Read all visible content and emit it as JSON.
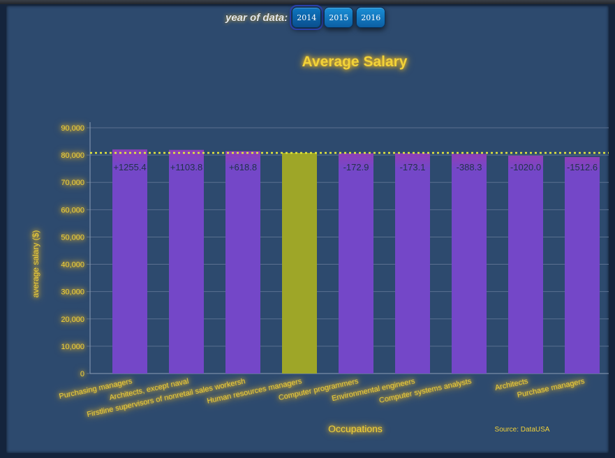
{
  "controls": {
    "year_label": "year of data:",
    "years": [
      "2014",
      "2015",
      "2016"
    ],
    "selected_year": "2014"
  },
  "chart_data": {
    "type": "bar",
    "title": "Average Salary",
    "xlabel": "Occupations",
    "ylabel": "average salary ($)",
    "source": "Source: DataUSA",
    "ylim": [
      0,
      90000
    ],
    "yticks": [
      0,
      10000,
      20000,
      30000,
      40000,
      50000,
      60000,
      70000,
      80000,
      90000
    ],
    "ytick_labels": [
      "0",
      "10,000",
      "20,000",
      "30,000",
      "40,000",
      "50,000",
      "60,000",
      "70,000",
      "80,000",
      "90,000"
    ],
    "grid": true,
    "reference_value": 80800,
    "reference_category": "Human resources managers",
    "categories": [
      "Purchasing managers",
      "Architects, except naval",
      "Firstline supervisors of nonretail sales workersh",
      "Human resources managers",
      "Computer programmers",
      "Environmental engineers",
      "Computer systems analysts",
      "Architects",
      "Purchase managers"
    ],
    "values": [
      82055,
      81904,
      81419,
      80800,
      80627,
      80627,
      80412,
      79780,
      79287
    ],
    "difference_labels": [
      "+1255.4",
      "+1103.8",
      "+618.8",
      "",
      "-172.9",
      "-173.1",
      "-388.3",
      "-1020.0",
      "-1512.6"
    ],
    "colors": {
      "bar": "#7447c8",
      "highlight": "#9ea628",
      "reference_line": "#e4e83c",
      "text": "#f2d238",
      "difference_text": "#23324a",
      "grid": "#5a7090"
    }
  }
}
